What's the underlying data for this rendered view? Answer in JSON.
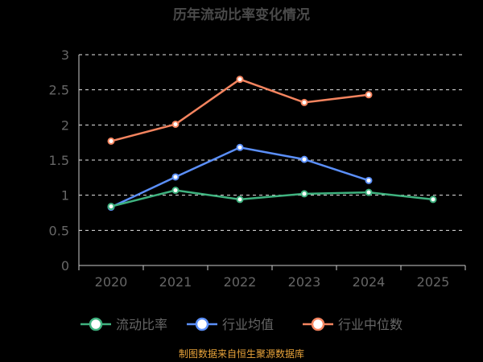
{
  "chart_data": {
    "type": "line",
    "title": "历年流动比率变化情况",
    "categories": [
      "2020",
      "2021",
      "2022",
      "2023",
      "2024",
      "2025"
    ],
    "ylim": [
      0,
      3
    ],
    "yticks": [
      "0",
      "0.5",
      "1",
      "1.5",
      "2",
      "2.5",
      "3"
    ],
    "grid": true,
    "legend_position": "bottom",
    "series": [
      {
        "name": "流动比率",
        "color": "#3fb27f",
        "values": [
          0.84,
          1.07,
          0.94,
          1.02,
          1.04,
          0.94
        ]
      },
      {
        "name": "行业均值",
        "color": "#5b8ff9",
        "values": [
          0.83,
          1.26,
          1.68,
          1.51,
          1.21,
          null
        ]
      },
      {
        "name": "行业中位数",
        "color": "#f4845f",
        "values": [
          1.77,
          2.01,
          2.65,
          2.32,
          2.43,
          null
        ]
      }
    ]
  },
  "source_text": "制图数据来自恒生聚源数据库"
}
